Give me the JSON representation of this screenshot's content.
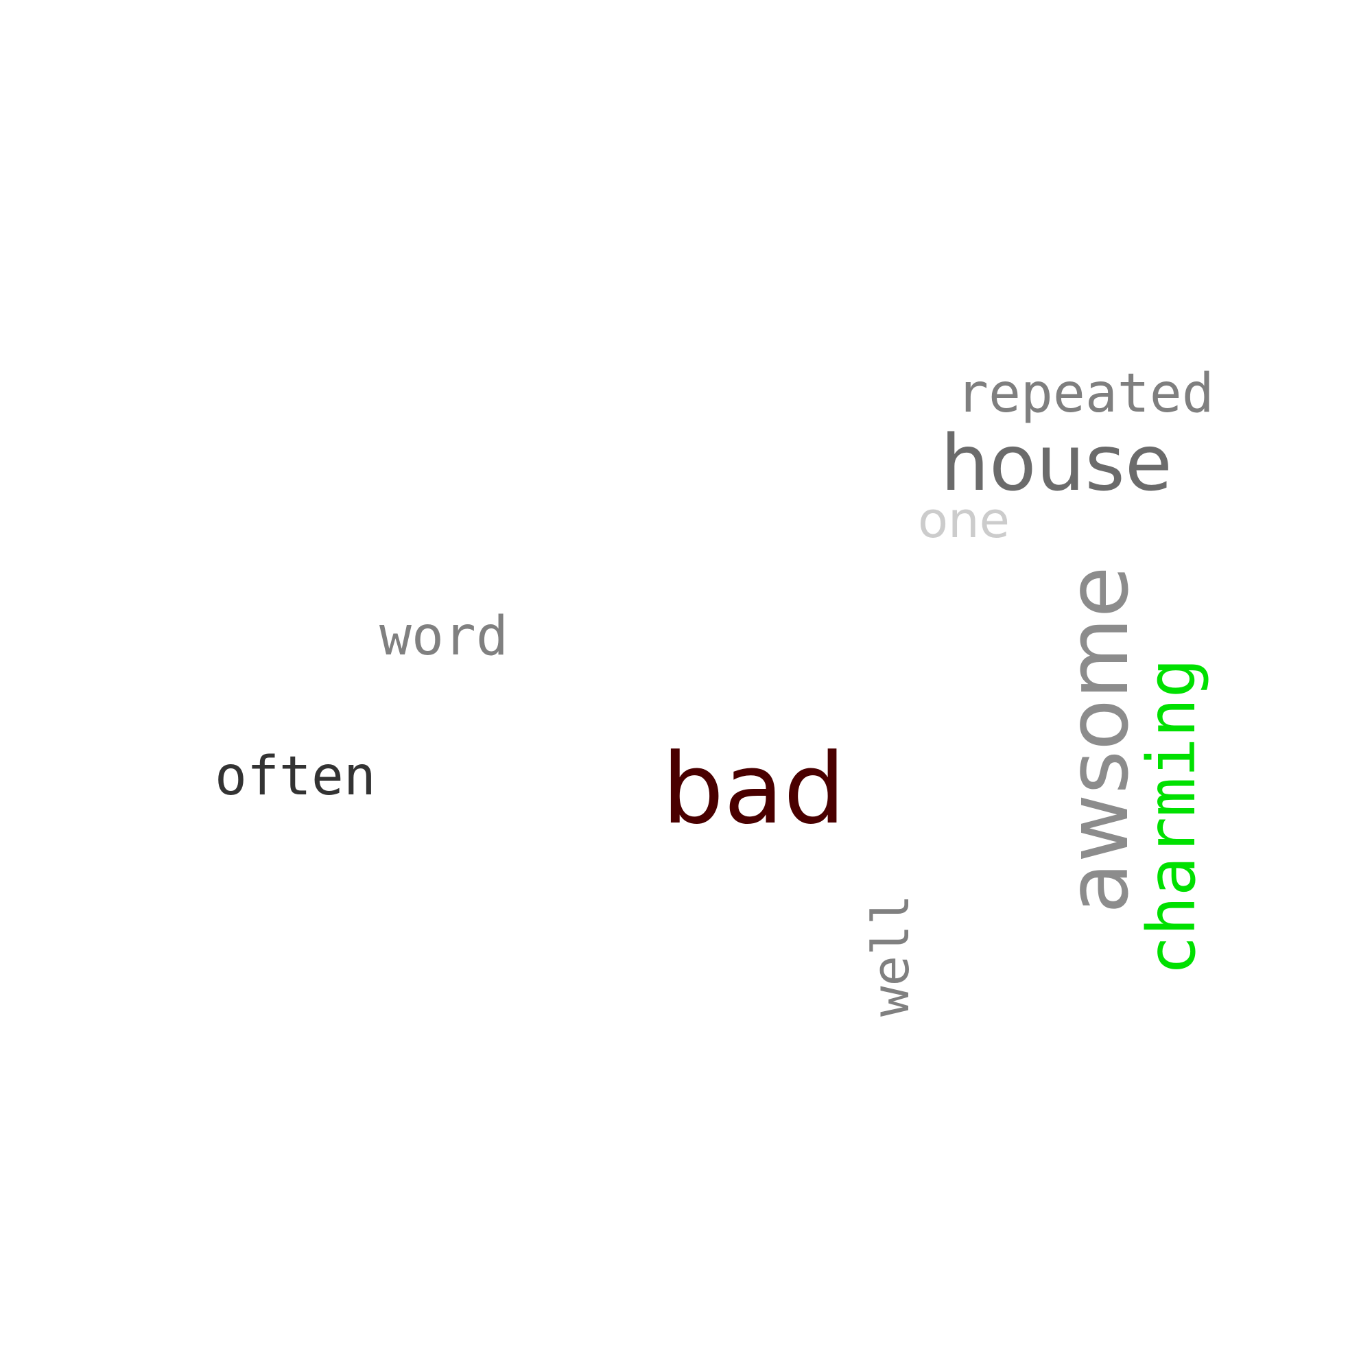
{
  "words": [
    {
      "id": "repeated",
      "text": "repeated",
      "color": "#7f7f7f"
    },
    {
      "id": "house",
      "text": "house",
      "color": "#6b6b6b"
    },
    {
      "id": "one",
      "text": "one",
      "color": "#cccccc"
    },
    {
      "id": "word",
      "text": "word",
      "color": "#808080"
    },
    {
      "id": "often",
      "text": "often",
      "color": "#333333"
    },
    {
      "id": "bad",
      "text": "bad",
      "color": "#4a0000"
    },
    {
      "id": "well",
      "text": "well",
      "color": "#808080"
    },
    {
      "id": "awsome",
      "text": "awsome",
      "color": "#8c8c8c"
    },
    {
      "id": "charming",
      "text": "charming",
      "color": "#00e000"
    }
  ]
}
